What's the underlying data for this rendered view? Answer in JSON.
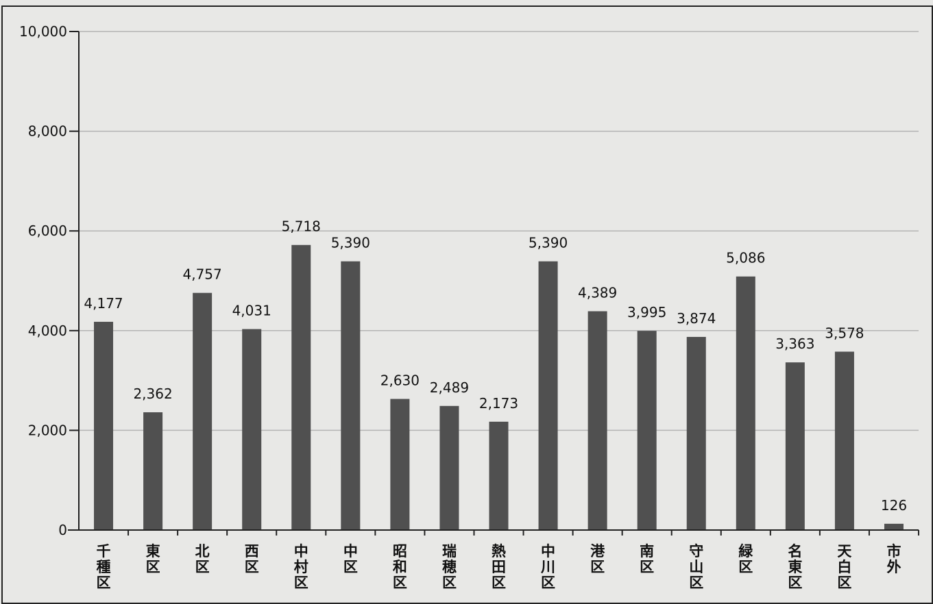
{
  "chart_data": {
    "type": "bar",
    "categories": [
      "千種区",
      "東区",
      "北区",
      "西区",
      "中村区",
      "中区",
      "昭和区",
      "瑞穂区",
      "熱田区",
      "中川区",
      "港区",
      "南区",
      "守山区",
      "緑区",
      "名東区",
      "天白区",
      "市外"
    ],
    "values": [
      4177,
      2362,
      4757,
      4031,
      5718,
      5390,
      2630,
      2489,
      2173,
      5390,
      4389,
      3995,
      3874,
      5086,
      3363,
      3578,
      126
    ],
    "value_labels": [
      "4,177",
      "2,362",
      "4,757",
      "4,031",
      "5,718",
      "5,390",
      "2,630",
      "2,489",
      "2,173",
      "5,390",
      "4,389",
      "3,995",
      "3,874",
      "5,086",
      "3,363",
      "3,578",
      "126"
    ],
    "yticks": [
      0,
      2000,
      4000,
      6000,
      8000,
      10000
    ],
    "ytick_labels": [
      "0",
      "2,000",
      "4,000",
      "6,000",
      "8,000",
      "10,000"
    ],
    "ylim": [
      0,
      10000
    ],
    "title": "",
    "xlabel": "",
    "ylabel": "",
    "grid": true,
    "legend": "none",
    "colors": {
      "bar": "#505050",
      "grid": "#b4b4b4",
      "axis": "#222222",
      "background": "#e8e8e6"
    }
  }
}
